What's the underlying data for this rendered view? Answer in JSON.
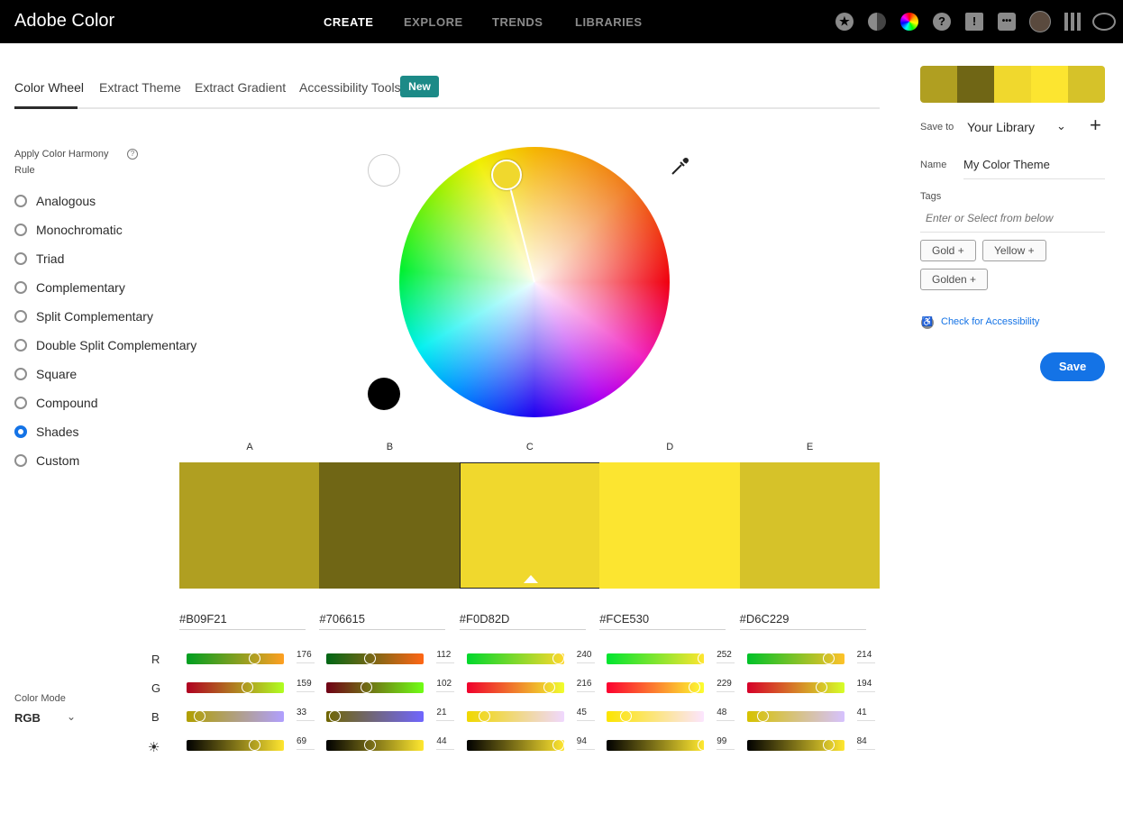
{
  "app": {
    "title": "Adobe Color"
  },
  "nav": [
    {
      "label": "CREATE",
      "active": true
    },
    {
      "label": "EXPLORE"
    },
    {
      "label": "TRENDS"
    },
    {
      "label": "LIBRARIES"
    }
  ],
  "topbar_icons": [
    "star-icon",
    "moon-icon",
    "color-wheel-icon",
    "help-icon",
    "feedback-icon",
    "chat-icon",
    "avatar",
    "apps-grid-icon",
    "creative-cloud-icon"
  ],
  "tabs": [
    {
      "label": "Color Wheel",
      "active": true
    },
    {
      "label": "Extract Theme"
    },
    {
      "label": "Extract Gradient"
    },
    {
      "label": "Accessibility Tools"
    }
  ],
  "new_badge": "New",
  "harmony": {
    "title": "Apply Color Harmony Rule",
    "help_icon": "question-circle-icon",
    "rules": [
      "Analogous",
      "Monochromatic",
      "Triad",
      "Complementary",
      "Split Complementary",
      "Double Split Complementary",
      "Square",
      "Compound",
      "Shades",
      "Custom"
    ],
    "selected": "Shades"
  },
  "color_mode": {
    "label": "Color Mode",
    "value": "RGB"
  },
  "row_labels": [
    "R",
    "G",
    "B"
  ],
  "swatches": [
    {
      "letter": "A",
      "hex": "#B09F21",
      "r": 176,
      "g": 159,
      "b": 33,
      "brightness": 69
    },
    {
      "letter": "B",
      "hex": "#706615",
      "r": 112,
      "g": 102,
      "b": 21,
      "brightness": 44
    },
    {
      "letter": "C",
      "hex": "#F0D82D",
      "r": 240,
      "g": 216,
      "b": 45,
      "brightness": 94,
      "selected": true
    },
    {
      "letter": "D",
      "hex": "#FCE530",
      "r": 252,
      "g": 229,
      "b": 48,
      "brightness": 99
    },
    {
      "letter": "E",
      "hex": "#D6C229",
      "r": 214,
      "g": 194,
      "b": 41,
      "brightness": 84
    }
  ],
  "panel": {
    "save_to_label": "Save to",
    "library": "Your Library",
    "name_label": "Name",
    "name_value": "My Color Theme",
    "tags_label": "Tags",
    "tags_placeholder": "Enter or Select from below",
    "tags": [
      "Gold",
      "Yellow",
      "Golden"
    ],
    "accessibility_link": "Check for Accessibility",
    "save": "Save"
  },
  "colors": {
    "accent": "#1473E6",
    "badge": "#1C8A87"
  }
}
